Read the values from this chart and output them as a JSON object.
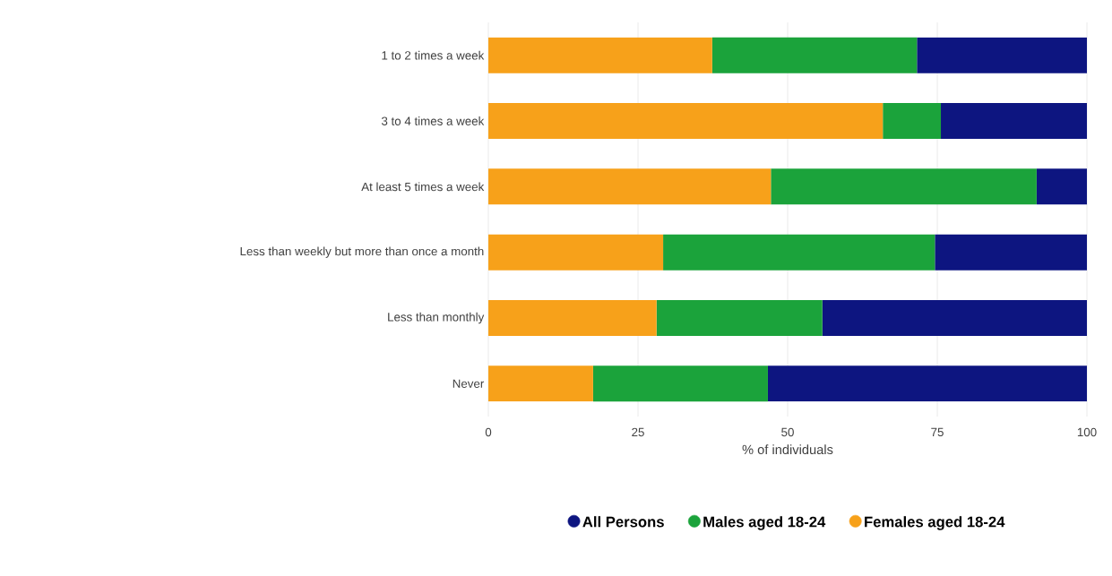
{
  "chart_data": {
    "type": "bar",
    "orientation": "horizontal",
    "stacked": true,
    "xlabel": "% of individuals",
    "categories": [
      "1 to 2 times a week",
      "3 to 4 times a week",
      "At least 5 times a week",
      "Less than weekly but more than once a month",
      "Less than monthly",
      "Never"
    ],
    "series": [
      {
        "name": "Females aged 18-24",
        "color": "#f7a11a",
        "values": [
          37.4,
          65.9,
          47.2,
          29.2,
          28.1,
          17.5
        ]
      },
      {
        "name": "Males aged 18-24",
        "color": "#1ba33b",
        "values": [
          34.2,
          9.7,
          44.4,
          45.4,
          27.7,
          29.2
        ]
      },
      {
        "name": "All Persons",
        "color": "#0d1580",
        "values": [
          28.4,
          24.4,
          8.4,
          25.4,
          44.2,
          53.3
        ]
      }
    ],
    "xlim": [
      0,
      100
    ],
    "xticks": [
      0,
      25,
      50,
      75,
      100
    ],
    "grid": "x",
    "legend": "bottom"
  }
}
